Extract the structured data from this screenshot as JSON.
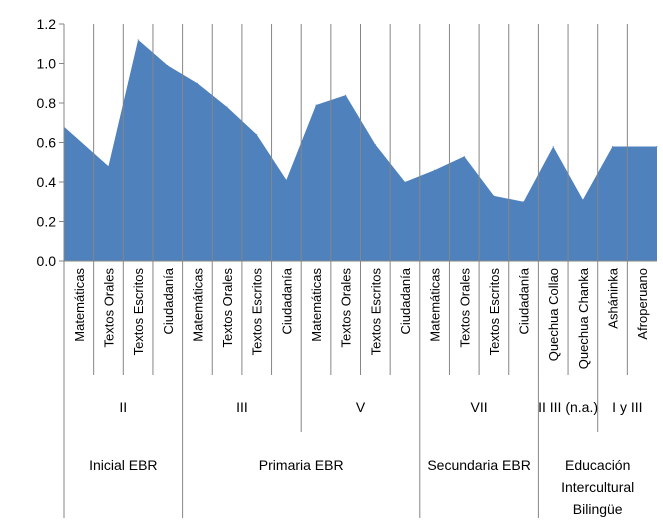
{
  "chart_data": {
    "type": "area",
    "title": "",
    "xlabel": "",
    "ylabel": "",
    "ylim": [
      0,
      1.2
    ],
    "yticks": [
      "0.0",
      "0.2",
      "0.4",
      "0.6",
      "0.8",
      "1.0",
      "1.2"
    ],
    "grid": false,
    "legend": "none",
    "series": [
      {
        "color": "#4f81bd",
        "values": [
          0.68,
          0.48,
          1.12,
          0.99,
          0.9,
          0.78,
          0.64,
          0.41,
          0.79,
          0.84,
          0.59,
          0.4,
          0.46,
          0.53,
          0.33,
          0.3,
          0.58,
          0.31,
          0.58,
          0.58
        ]
      }
    ],
    "categories": [
      "Matemáticas",
      "Textos Orales",
      "Textos Escritos",
      "Ciudadanía",
      "Matemáticas",
      "Textos Orales",
      "Textos Escritos",
      "Ciudadanía",
      "Matemáticas",
      "Textos Orales",
      "Textos Escritos",
      "Ciudadanía",
      "Matemáticas",
      "Textos Orales",
      "Textos Escritos",
      "Ciudadanía",
      "Quechua Collao",
      "Quechua Chanka",
      "Asháninka",
      "Afroperuano"
    ],
    "cycles": [
      {
        "label": "II",
        "start": 0,
        "end": 4
      },
      {
        "label": "III",
        "start": 4,
        "end": 8
      },
      {
        "label": "V",
        "start": 8,
        "end": 12
      },
      {
        "label": "VII",
        "start": 12,
        "end": 16
      },
      {
        "label": "II III (n.a.)",
        "start": 16,
        "end": 18
      },
      {
        "label": "I y III",
        "start": 18,
        "end": 20
      }
    ],
    "levels": [
      {
        "label": "Inicial EBR",
        "start": 0,
        "end": 4
      },
      {
        "label": "Primaria EBR",
        "start": 4,
        "end": 12
      },
      {
        "label": "Secundaria EBR",
        "start": 12,
        "end": 16
      },
      {
        "label": "Educación Intercultural Bilingüe",
        "start": 16,
        "end": 20
      }
    ]
  }
}
